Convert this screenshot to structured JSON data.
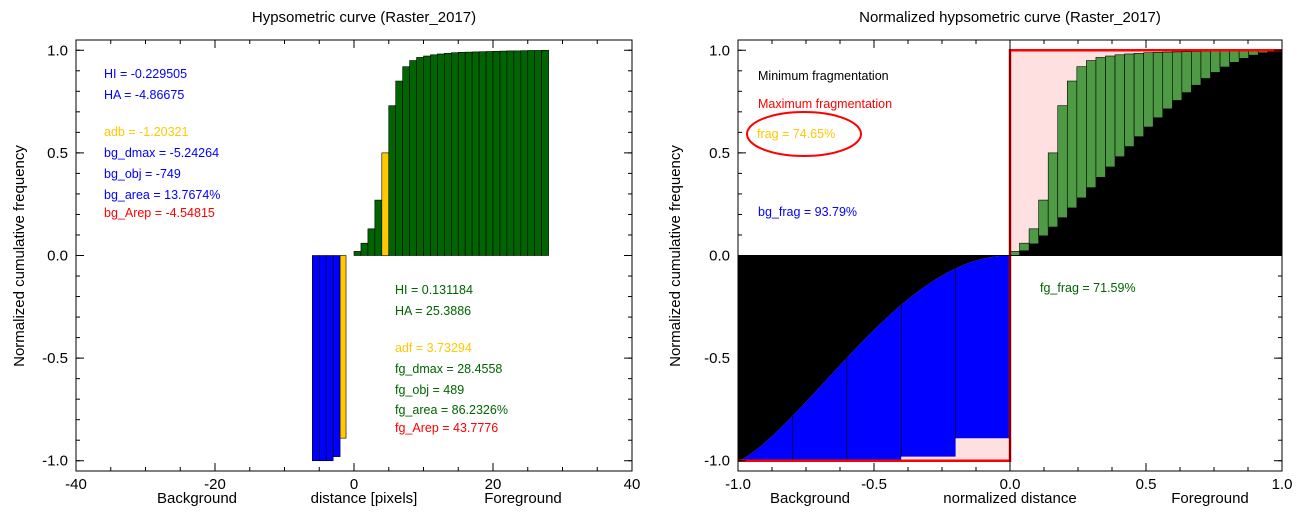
{
  "colors": {
    "green": "#006400",
    "light_green": "#4f9a45",
    "blue": "#0000ff",
    "yellow": "#ffc800",
    "red": "#ff0000",
    "pink": "#ffe0e0",
    "black": "#000000"
  },
  "chart_data": [
    {
      "type": "bar",
      "title": "Hypsometric curve (Raster_2017)",
      "ylabel": "Normalized cumulative frequency",
      "xlabel_left": "Background",
      "xlabel": "distance [pixels]",
      "xlabel_right": "Foreground",
      "xlim": [
        -40,
        40
      ],
      "ylim": [
        -1.05,
        1.05
      ],
      "xticks": [
        "-40",
        "-20",
        "0",
        "20",
        "40"
      ],
      "yticks": [
        "-1.0",
        "-0.5",
        "0.0",
        "0.5",
        "1.0"
      ],
      "foreground": {
        "x": [
          1,
          2,
          3,
          4,
          5,
          6,
          7,
          8,
          9,
          10,
          11,
          12,
          13,
          14,
          15,
          16,
          17,
          18,
          19,
          20,
          21,
          22,
          23,
          24,
          25,
          26,
          27,
          28
        ],
        "values": [
          0.02,
          0.06,
          0.13,
          0.27,
          0.5,
          0.73,
          0.85,
          0.92,
          0.95,
          0.965,
          0.972,
          0.978,
          0.982,
          0.985,
          0.988,
          0.99,
          0.991,
          0.992,
          0.993,
          0.994,
          0.995,
          0.996,
          0.997,
          0.997,
          0.998,
          0.999,
          0.999,
          1.0
        ],
        "highlight_x": 5
      },
      "background": {
        "x": [
          -5,
          -4,
          -3,
          -2,
          -1
        ],
        "values": [
          -1.0,
          -1.0,
          -1.0,
          -0.98,
          -0.89
        ],
        "highlight_x": -1
      },
      "annotations_bg": [
        {
          "text": "HI = -0.229505",
          "color": "blue"
        },
        {
          "text": "HA = -4.86675",
          "color": "blue"
        },
        {
          "text": "adb = -1.20321",
          "color": "yellow"
        },
        {
          "text": "bg_dmax = -5.24264",
          "color": "blue"
        },
        {
          "text": "bg_obj = -749",
          "color": "blue"
        },
        {
          "text": "bg_area = 13.7674%",
          "color": "blue"
        },
        {
          "text": "bg_Arep = -4.54815",
          "color": "red"
        }
      ],
      "annotations_fg": [
        {
          "text": "HI = 0.131184",
          "color": "green"
        },
        {
          "text": "HA = 25.3886",
          "color": "green"
        },
        {
          "text": "adf = 3.73294",
          "color": "yellow"
        },
        {
          "text": "fg_dmax = 28.4558",
          "color": "green"
        },
        {
          "text": "fg_obj = 489",
          "color": "green"
        },
        {
          "text": "fg_area = 86.2326%",
          "color": "green"
        },
        {
          "text": "fg_Arep = 43.7776",
          "color": "red"
        }
      ]
    },
    {
      "type": "area",
      "title": "Normalized hypsometric curve (Raster_2017)",
      "ylabel": "Normalized cumulative frequency",
      "xlabel_left": "Background",
      "xlabel": "normalized distance",
      "xlabel_right": "Foreground",
      "xlim": [
        -1.0,
        1.0
      ],
      "ylim": [
        -1.05,
        1.05
      ],
      "xticks": [
        "-1.0",
        "-0.5",
        "0.0",
        "0.5",
        "1.0"
      ],
      "yticks": [
        "-1.0",
        "-0.5",
        "0.0",
        "0.5",
        "1.0"
      ],
      "foreground": {
        "x_start": 0.0,
        "bin_width": 0.0351,
        "values": [
          0.02,
          0.06,
          0.13,
          0.27,
          0.5,
          0.73,
          0.85,
          0.92,
          0.95,
          0.965,
          0.972,
          0.978,
          0.982,
          0.985,
          0.988,
          0.99,
          0.991,
          0.992,
          0.993,
          0.994,
          0.995,
          0.996,
          0.997,
          0.997,
          0.998,
          0.999,
          0.999,
          1.0
        ]
      },
      "background": {
        "x_start": -1.0,
        "bin_width": 0.2,
        "values": [
          -1.0,
          -1.0,
          -1.0,
          -0.98,
          -0.89
        ]
      },
      "annotations": [
        {
          "text": "Minimum fragmentation",
          "color": "black"
        },
        {
          "text": "Maximum fragmentation",
          "color": "red"
        },
        {
          "text": "frag = 74.65%",
          "color": "yellow"
        },
        {
          "text": "bg_frag = 93.79%",
          "color": "blue"
        },
        {
          "text": "fg_frag = 71.59%",
          "color": "green"
        }
      ]
    }
  ]
}
